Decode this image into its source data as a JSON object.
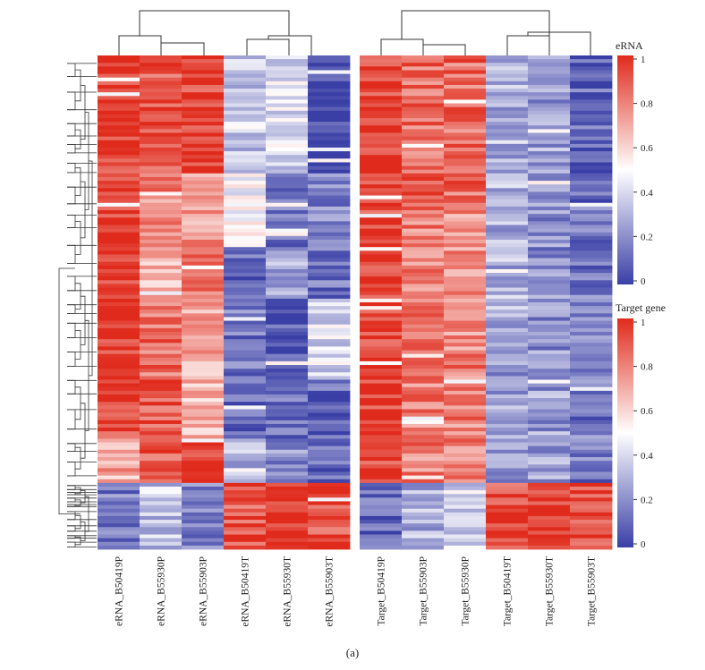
{
  "caption": "(a)",
  "chart_data": [
    {
      "type": "heatmap",
      "panel": "eRNA",
      "columns": [
        "eRNA_B50419P",
        "eRNA_B55930P",
        "eRNA_B55903P",
        "eRNA_B50419T",
        "eRNA_B55930T",
        "eRNA_B55903T"
      ],
      "column_dendrogram": "groups (eRNA_B50419P, (eRNA_B55930P, eRNA_B55903P)) and (eRNA_B50419T, (eRNA_B55930T, eRNA_B55903T))",
      "row_dendrogram": "shared hierarchical clustering of rows; top block high in P columns, bottom block high in T columns",
      "color_scale": {
        "low": "#3a3fa6",
        "mid": "#ffffff",
        "high": "#e02b1c",
        "range": [
          0,
          1
        ]
      },
      "row_blocks": [
        {
          "rows": 32,
          "values": [
            0.97,
            0.9,
            0.95,
            0.35,
            0.4,
            0.02
          ]
        },
        {
          "rows": 20,
          "values": [
            0.97,
            0.78,
            0.75,
            0.45,
            0.15,
            0.2
          ]
        },
        {
          "rows": 14,
          "values": [
            0.97,
            0.7,
            0.85,
            0.1,
            0.3,
            0.15
          ]
        },
        {
          "rows": 22,
          "values": [
            0.97,
            0.85,
            0.7,
            0.15,
            0.05,
            0.4
          ]
        },
        {
          "rows": 16,
          "values": [
            0.95,
            0.9,
            0.65,
            0.1,
            0.15,
            0.1
          ]
        },
        {
          "rows": 12,
          "values": [
            0.7,
            0.88,
            0.95,
            0.3,
            0.2,
            0.1
          ]
        },
        {
          "rows": 18,
          "values": [
            0.15,
            0.35,
            0.2,
            0.9,
            0.95,
            0.92
          ]
        }
      ]
    },
    {
      "type": "heatmap",
      "panel": "Target gene",
      "columns": [
        "Target_B50419P",
        "Target_B55903P",
        "Target_B55930P",
        "Target_B50419T",
        "Target_B55930T",
        "Target_B55903T"
      ],
      "column_dendrogram": "groups (Target_B50419P, (Target_B55903P, Target_B55930P)) and (Target_B50419T, (Target_B55930T, Target_B55903T))",
      "color_scale": {
        "low": "#3a3fa6",
        "mid": "#ffffff",
        "high": "#e02b1c",
        "range": [
          0,
          1
        ]
      },
      "row_blocks": [
        {
          "rows": 40,
          "values": [
            0.95,
            0.85,
            0.85,
            0.3,
            0.25,
            0.1
          ]
        },
        {
          "rows": 40,
          "values": [
            0.95,
            0.8,
            0.75,
            0.3,
            0.2,
            0.15
          ]
        },
        {
          "rows": 36,
          "values": [
            0.95,
            0.8,
            0.8,
            0.25,
            0.25,
            0.15
          ]
        },
        {
          "rows": 18,
          "values": [
            0.1,
            0.3,
            0.4,
            0.92,
            0.95,
            0.9
          ]
        }
      ]
    }
  ],
  "legends": [
    {
      "title": "eRNA",
      "ticks": [
        "1",
        "0.8",
        "0.6",
        "0.4",
        "0.2",
        "0"
      ],
      "tick_values": [
        1,
        0.8,
        0.6,
        0.4,
        0.2,
        0
      ]
    },
    {
      "title": "Target gene",
      "ticks": [
        "1",
        "0.8",
        "0.6",
        "0.4",
        "0.2",
        "0"
      ],
      "tick_values": [
        1,
        0.8,
        0.6,
        0.4,
        0.2,
        0
      ]
    }
  ]
}
